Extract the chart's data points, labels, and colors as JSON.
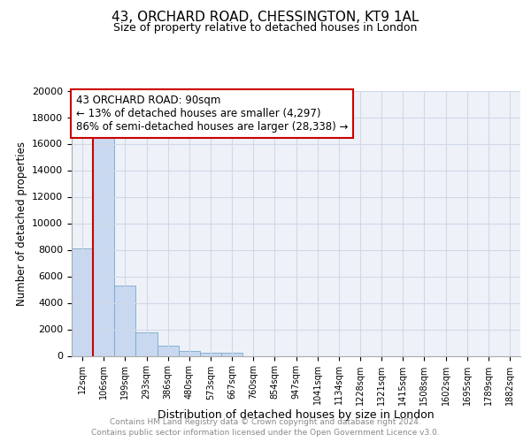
{
  "title": "43, ORCHARD ROAD, CHESSINGTON, KT9 1AL",
  "subtitle": "Size of property relative to detached houses in London",
  "xlabel": "Distribution of detached houses by size in London",
  "ylabel": "Number of detached properties",
  "footer_line1": "Contains HM Land Registry data © Crown copyright and database right 2024.",
  "footer_line2": "Contains public sector information licensed under the Open Government Licence v3.0.",
  "annotation_line1": "43 ORCHARD ROAD: 90sqm",
  "annotation_line2": "← 13% of detached houses are smaller (4,297)",
  "annotation_line3": "86% of semi-detached houses are larger (28,338) →",
  "bar_categories": [
    "12sqm",
    "106sqm",
    "199sqm",
    "293sqm",
    "386sqm",
    "480sqm",
    "573sqm",
    "667sqm",
    "760sqm",
    "854sqm",
    "947sqm",
    "1041sqm",
    "1134sqm",
    "1228sqm",
    "1321sqm",
    "1415sqm",
    "1508sqm",
    "1602sqm",
    "1695sqm",
    "1789sqm",
    "1882sqm"
  ],
  "bar_values": [
    8100,
    16500,
    5300,
    1750,
    800,
    380,
    230,
    220,
    0,
    0,
    0,
    0,
    0,
    0,
    0,
    0,
    0,
    0,
    0,
    0,
    0
  ],
  "bar_color": "#c8d8f0",
  "bar_edge_color": "#7aa8cc",
  "ylim": [
    0,
    20000
  ],
  "yticks": [
    0,
    2000,
    4000,
    6000,
    8000,
    10000,
    12000,
    14000,
    16000,
    18000,
    20000
  ],
  "grid_color": "#d0d8e8",
  "annotation_box_color": "#ffffff",
  "annotation_box_edge": "#cc0000",
  "red_line_color": "#cc0000",
  "background_color": "#eef2f8",
  "plot_bg_color": "#eef2f8"
}
